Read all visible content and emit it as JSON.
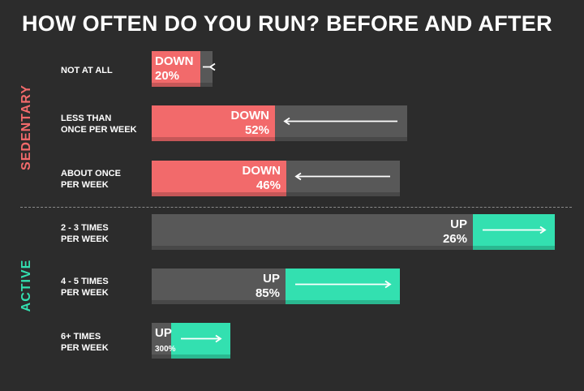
{
  "colors": {
    "background": "#2c2c2c",
    "down": "#f26a6b",
    "up": "#33e0b0",
    "before": "#585858",
    "text": "#ffffff",
    "divider": "#8a8a8a"
  },
  "chart_data": {
    "type": "bar",
    "title": "HOW OFTEN DO YOU RUN? BEFORE AND AFTER",
    "groups": [
      {
        "label": "SEDENTARY",
        "color": "#f26a6b"
      },
      {
        "label": "ACTIVE",
        "color": "#33e0b0"
      }
    ],
    "rows": [
      {
        "label": "NOT AT ALL",
        "group": "SEDENTARY",
        "direction": "DOWN",
        "change_text": "20%",
        "change": -20,
        "before": 75,
        "after": 60
      },
      {
        "label": "LESS THAN\nONCE PER WEEK",
        "group": "SEDENTARY",
        "direction": "DOWN",
        "change_text": "52%",
        "change": -52,
        "before": 315,
        "after": 152
      },
      {
        "label": "ABOUT ONCE\nPER WEEK",
        "group": "SEDENTARY",
        "direction": "DOWN",
        "change_text": "46%",
        "change": -46,
        "before": 306,
        "after": 166
      },
      {
        "label": "2 - 3 TIMES\nPER WEEK",
        "group": "ACTIVE",
        "direction": "UP",
        "change_text": "26%",
        "change": 26,
        "before": 396,
        "after": 497
      },
      {
        "label": "4 - 5 TIMES\nPER WEEK",
        "group": "ACTIVE",
        "direction": "UP",
        "change_text": "85%",
        "change": 85,
        "before": 165,
        "after": 306
      },
      {
        "label": "6+ TIMES\nPER WEEK",
        "group": "ACTIVE",
        "direction": "UP",
        "change_text": "300%",
        "change": 300,
        "before": 24,
        "after": 97
      }
    ],
    "grid": false,
    "legend": "none"
  }
}
